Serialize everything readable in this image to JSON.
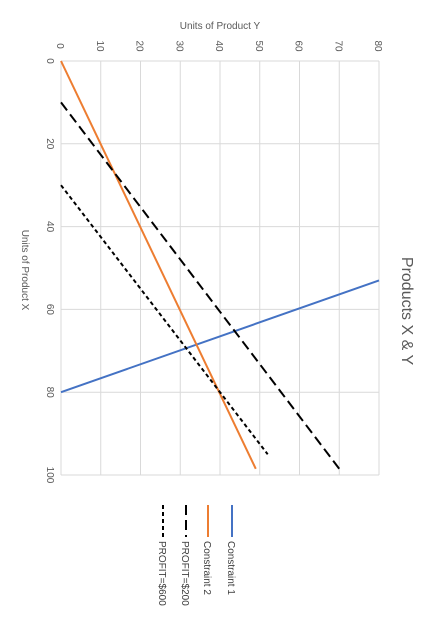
{
  "chart_data": {
    "type": "line",
    "title": "Products X & Y",
    "xlabel": "Units of Product X",
    "ylabel": "Units of Product Y",
    "xlim": [
      0,
      100
    ],
    "ylim": [
      0,
      80
    ],
    "x_ticks": [
      0,
      20,
      40,
      60,
      80,
      100
    ],
    "y_ticks": [
      0,
      10,
      20,
      30,
      40,
      50,
      60,
      70,
      80
    ],
    "grid": true,
    "orientation": "rotated 90° clockwise",
    "legend_position": "bottom",
    "series": [
      {
        "name": "Constraint 1",
        "color": "#4472C4",
        "dash": "solid",
        "points": [
          [
            80,
            0
          ],
          [
            53,
            80
          ]
        ]
      },
      {
        "name": "Constraint 2",
        "color": "#ED7D31",
        "dash": "solid",
        "points": [
          [
            0,
            0
          ],
          [
            98.5,
            49
          ]
        ]
      },
      {
        "name": "PROFIT=$200",
        "color": "#000000",
        "dash": "long-dash",
        "points": [
          [
            10,
            0
          ],
          [
            98.5,
            70
          ]
        ]
      },
      {
        "name": "PROFIT=$600",
        "color": "#000000",
        "dash": "short-dash",
        "points": [
          [
            30,
            0
          ],
          [
            95,
            52
          ]
        ]
      }
    ]
  }
}
